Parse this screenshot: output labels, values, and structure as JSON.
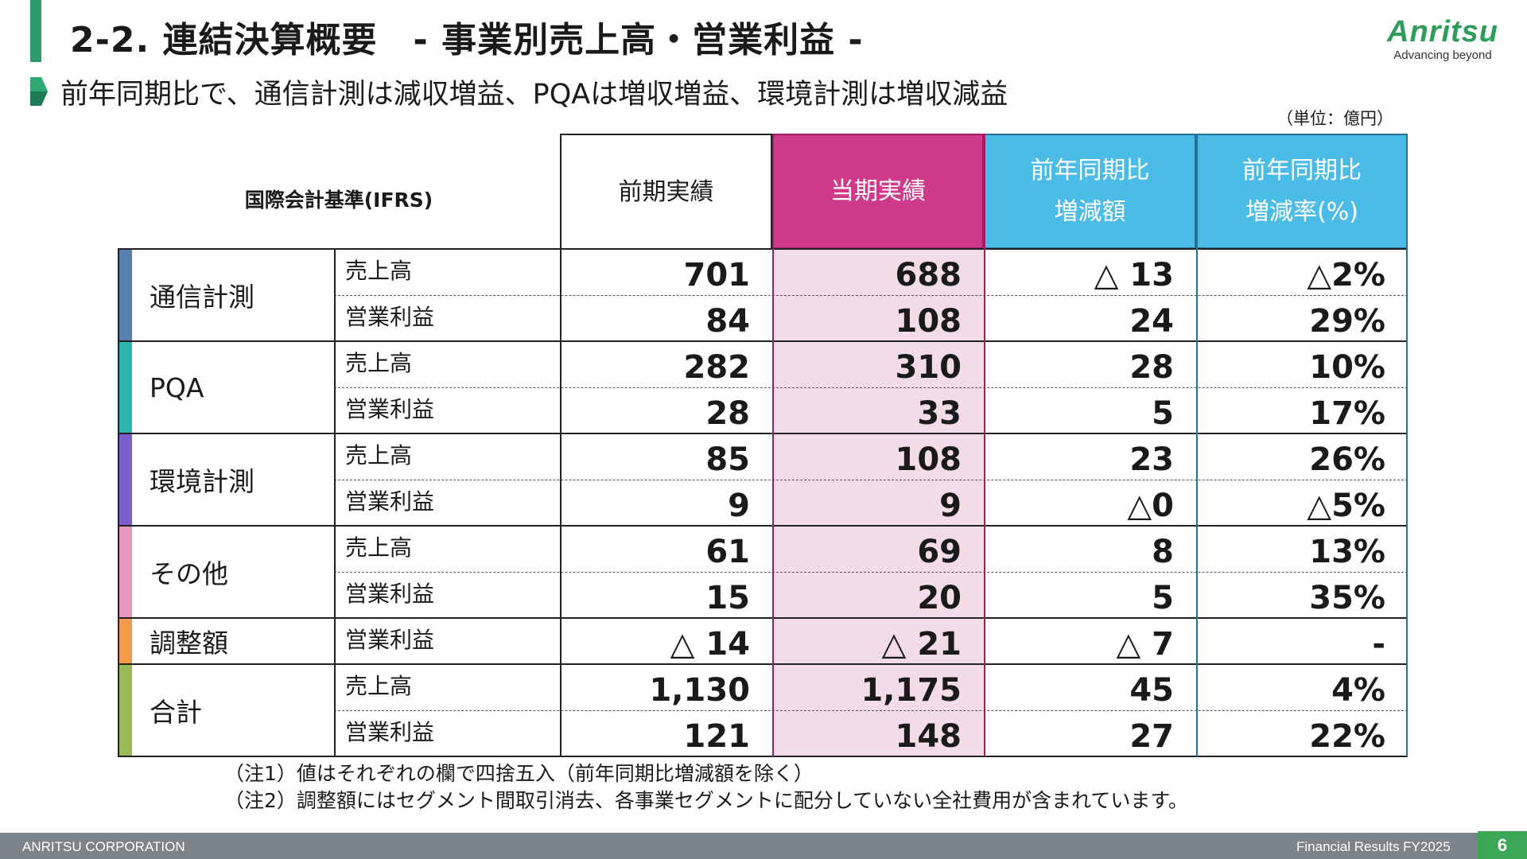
{
  "header": {
    "title": "2-2. 連結決算概要　- 事業別売上高・営業利益 -",
    "subtitle": "前年同期比で、通信計測は減収増益、PQAは増収増益、環境計測は増収減益",
    "logo_word": "Anritsu",
    "logo_tagline": "Advancing beyond",
    "unit_note": "（単位：億円）"
  },
  "table": {
    "corner_label": "国際会計基準(IFRS)",
    "columns": [
      {
        "line1": "前期実績",
        "line2": ""
      },
      {
        "line1": "当期実績",
        "line2": ""
      },
      {
        "line1": "前年同期比",
        "line2": "増減額"
      },
      {
        "line1": "前年同期比",
        "line2": "増減率(%)"
      }
    ],
    "segments": [
      {
        "name": "通信計測",
        "color": "#5b7fb0",
        "rows": [
          {
            "item": "売上高",
            "prev": "701",
            "curr": "688",
            "diff": "△ 13",
            "rate": "△2%"
          },
          {
            "item": "営業利益",
            "prev": "84",
            "curr": "108",
            "diff": "24",
            "rate": "29%"
          }
        ]
      },
      {
        "name": "PQA",
        "color": "#2bb7b0",
        "rows": [
          {
            "item": "売上高",
            "prev": "282",
            "curr": "310",
            "diff": "28",
            "rate": "10%"
          },
          {
            "item": "営業利益",
            "prev": "28",
            "curr": "33",
            "diff": "5",
            "rate": "17%"
          }
        ]
      },
      {
        "name": "環境計測",
        "color": "#7b5fcf",
        "rows": [
          {
            "item": "売上高",
            "prev": "85",
            "curr": "108",
            "diff": "23",
            "rate": "26%"
          },
          {
            "item": "営業利益",
            "prev": "9",
            "curr": "9",
            "diff": "△0",
            "rate": "△5%"
          }
        ]
      },
      {
        "name": "その他",
        "color": "#e896c4",
        "rows": [
          {
            "item": "売上高",
            "prev": "61",
            "curr": "69",
            "diff": "8",
            "rate": "13%"
          },
          {
            "item": "営業利益",
            "prev": "15",
            "curr": "20",
            "diff": "5",
            "rate": "35%"
          }
        ]
      },
      {
        "name": "調整額",
        "color": "#f39a4c",
        "rows": [
          {
            "item": "営業利益",
            "prev": "△ 14",
            "curr": "△ 21",
            "diff": "△ 7",
            "rate": "-"
          }
        ]
      },
      {
        "name": "合計",
        "color": "#9bbb59",
        "rows": [
          {
            "item": "売上高",
            "prev": "1,130",
            "curr": "1,175",
            "diff": "45",
            "rate": "4%"
          },
          {
            "item": "営業利益",
            "prev": "121",
            "curr": "148",
            "diff": "27",
            "rate": "22%"
          }
        ]
      }
    ],
    "colors": {
      "current_header": "#cf3b8a",
      "current_body": "#f3dbe7",
      "compare_header": "#4bbbe8",
      "compare_border": "#2a6f96"
    }
  },
  "notes": [
    "（注1）値はそれぞれの欄で四捨五入（前年同期比増減額を除く）",
    "（注2）調整額にはセグメント間取引消去、各事業セグメントに配分していない全社費用が含まれています。"
  ],
  "footer": {
    "company": "ANRITSU CORPORATION",
    "doc": "Financial Results FY2025",
    "page": "6"
  }
}
